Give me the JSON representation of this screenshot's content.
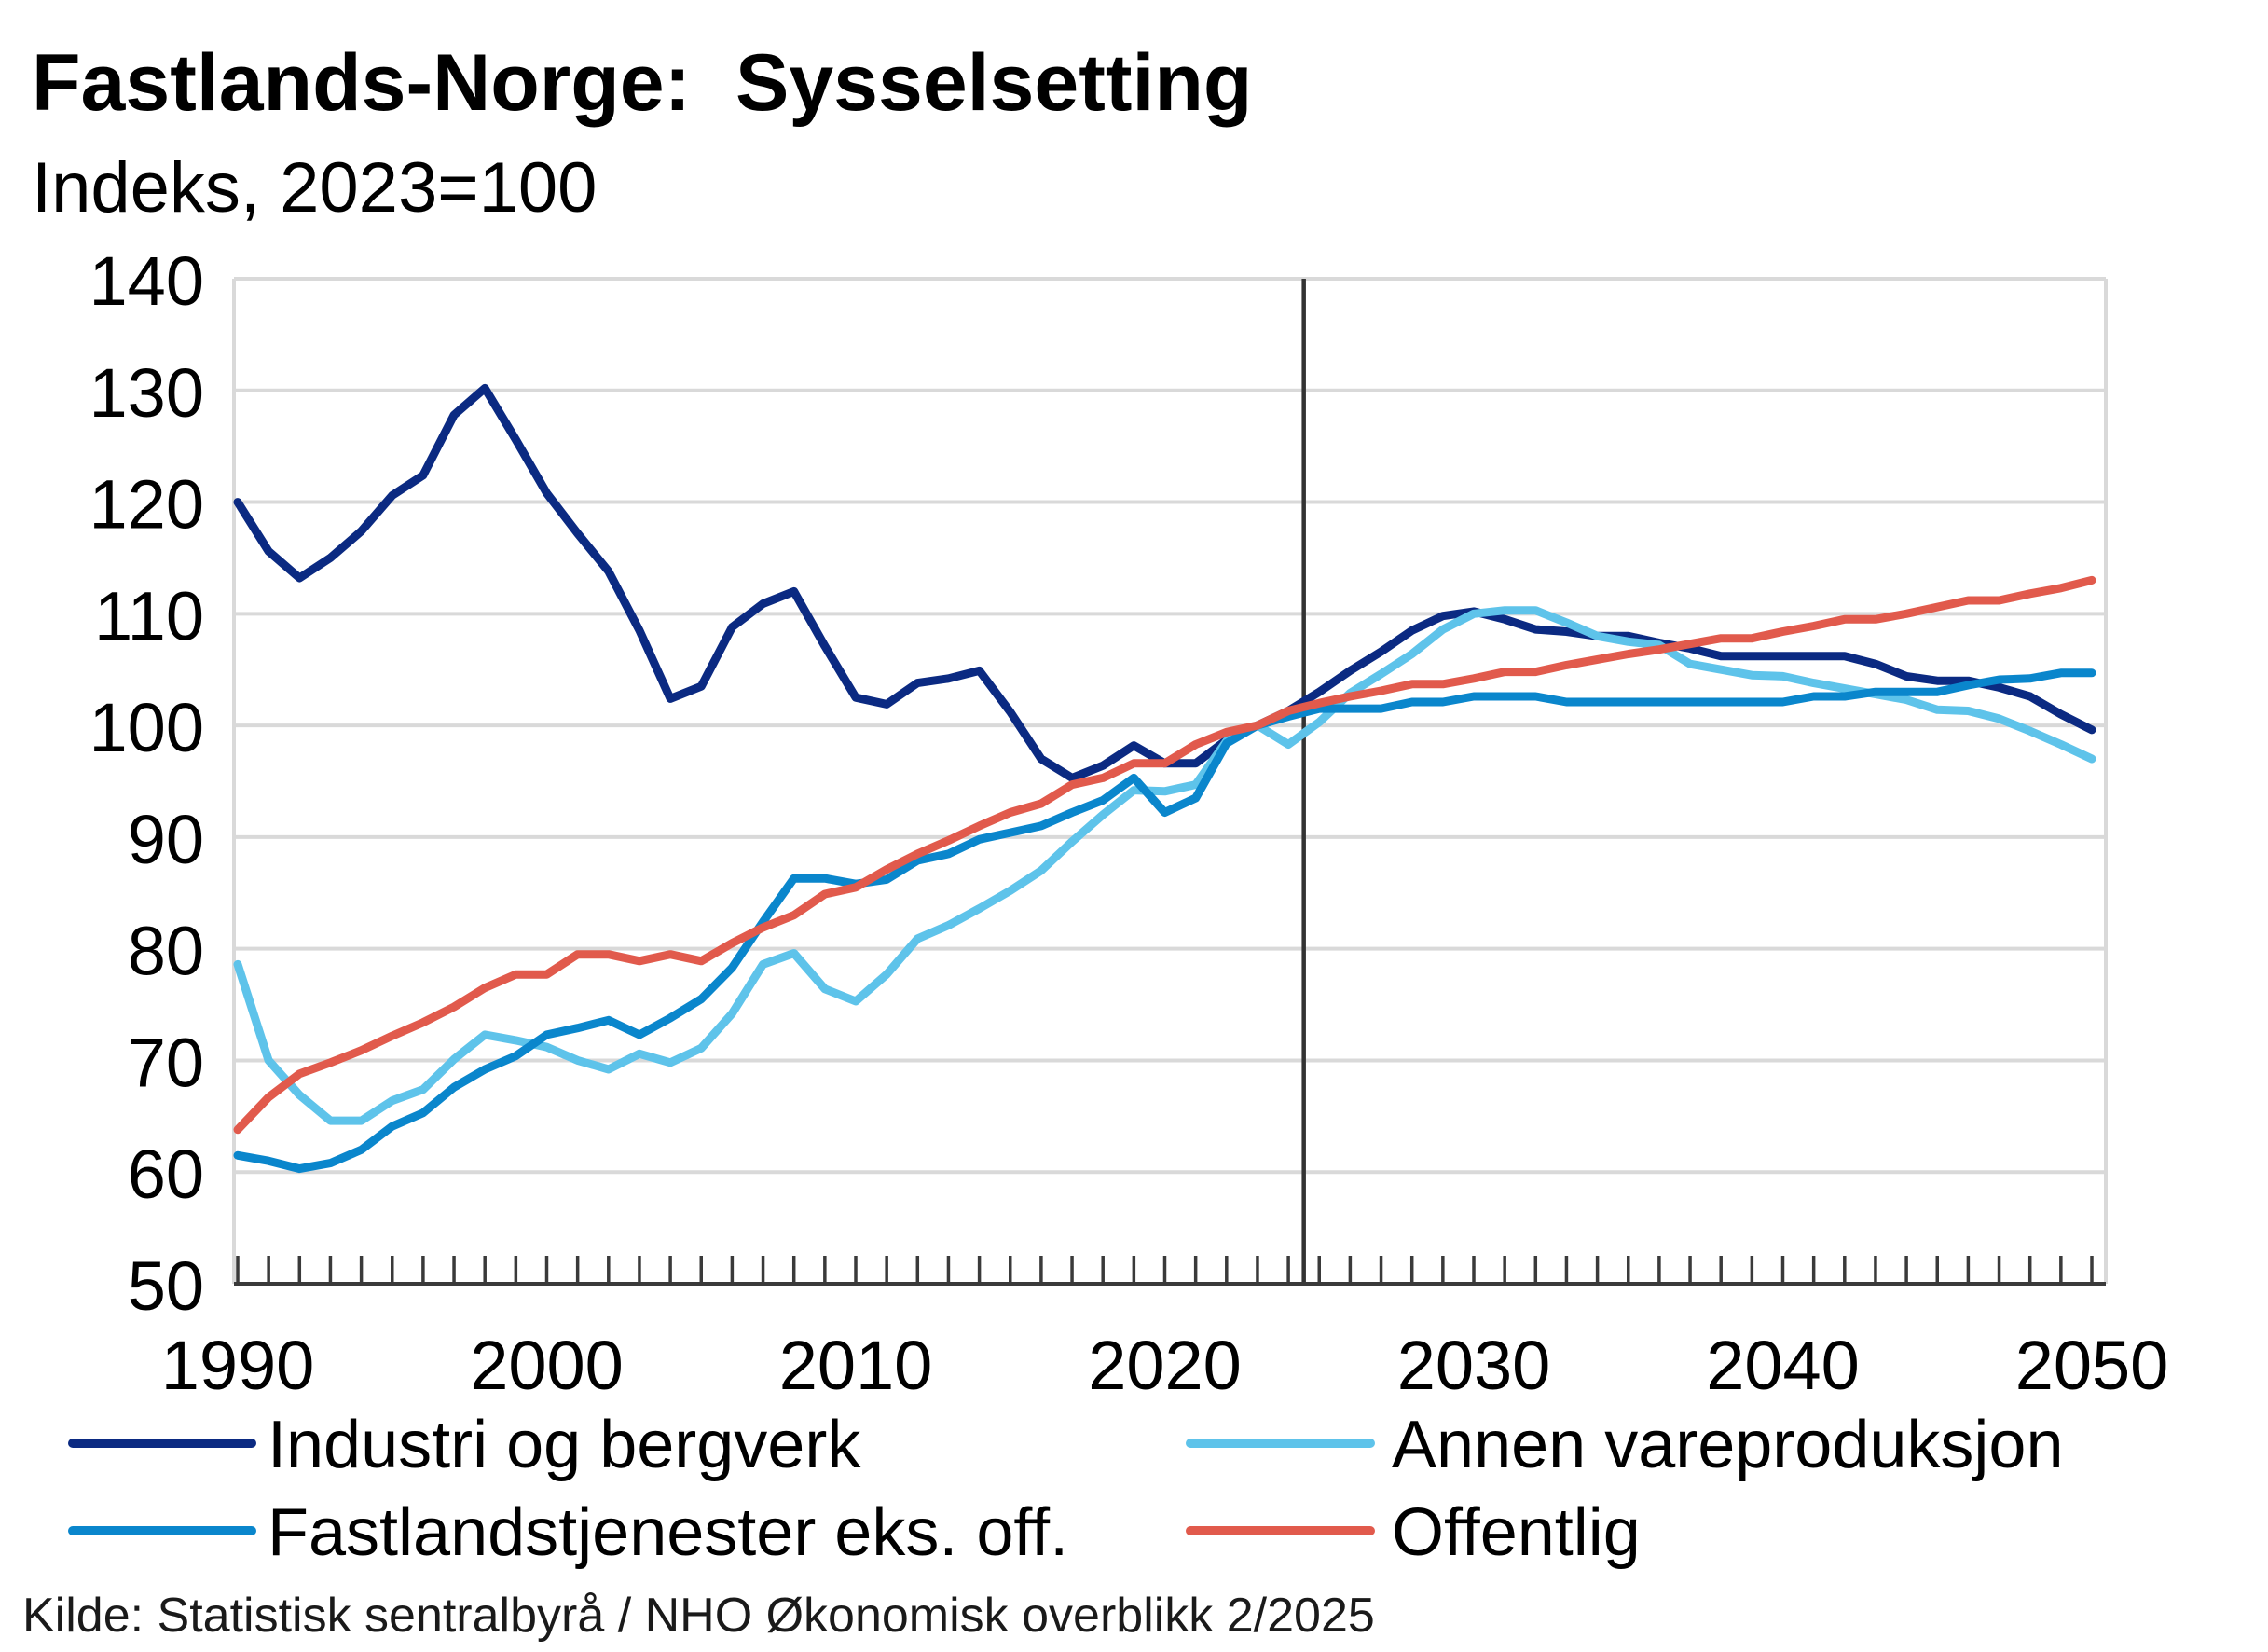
{
  "source": "Kilde: Statistisk sentralbyrå / NHO Økonomisk overblikk 2/2025",
  "chart_data": {
    "type": "line",
    "title": "Fastlands-Norge:  Sysselsetting",
    "subtitle": "Indeks, 2023=100",
    "xlabel": "",
    "ylabel": "",
    "ylim": [
      50,
      140
    ],
    "y_ticks": [
      50,
      60,
      70,
      80,
      90,
      100,
      110,
      120,
      130,
      140
    ],
    "x_ticks": [
      1990,
      2000,
      2010,
      2020,
      2030,
      2040,
      2050
    ],
    "grid": "horizontal",
    "legend_position": "bottom",
    "vertical_line_x": 2024.5,
    "x": [
      1990,
      1991,
      1992,
      1993,
      1994,
      1995,
      1996,
      1997,
      1998,
      1999,
      2000,
      2001,
      2002,
      2003,
      2004,
      2005,
      2006,
      2007,
      2008,
      2009,
      2010,
      2011,
      2012,
      2013,
      2014,
      2015,
      2016,
      2017,
      2018,
      2019,
      2020,
      2021,
      2022,
      2023,
      2024,
      2025,
      2026,
      2027,
      2028,
      2029,
      2030,
      2031,
      2032,
      2033,
      2034,
      2035,
      2036,
      2037,
      2038,
      2039,
      2040,
      2041,
      2042,
      2043,
      2044,
      2045,
      2046,
      2047,
      2048,
      2049,
      2050
    ],
    "series": [
      {
        "name": "Industri og bergverk",
        "color": "#0b2a82",
        "values": [
          120.0,
          115.6,
          113.2,
          115.0,
          117.4,
          120.6,
          122.4,
          127.8,
          130.2,
          125.6,
          120.8,
          117.2,
          113.8,
          108.5,
          102.4,
          103.5,
          108.8,
          110.9,
          112.0,
          107.1,
          102.5,
          101.9,
          103.8,
          104.2,
          104.9,
          101.2,
          97.0,
          95.3,
          96.4,
          98.2,
          96.6,
          96.6,
          98.7,
          100.0,
          101.3,
          103.0,
          104.9,
          106.6,
          108.5,
          109.8,
          110.2,
          109.5,
          108.6,
          108.4,
          108.0,
          108.0,
          107.4,
          106.9,
          106.2,
          106.2,
          106.2,
          106.2,
          106.2,
          105.5,
          104.4,
          104.0,
          104.0,
          103.4,
          102.6,
          101.0,
          99.6
        ]
      },
      {
        "name": "Annen vareproduksjon",
        "color": "#5ec3ea",
        "values": [
          78.6,
          70.0,
          66.9,
          64.6,
          64.6,
          66.4,
          67.4,
          70.1,
          72.3,
          71.8,
          71.2,
          70.0,
          69.2,
          70.6,
          69.8,
          71.1,
          74.2,
          78.6,
          79.6,
          76.4,
          75.3,
          77.7,
          80.9,
          82.1,
          83.6,
          85.2,
          87.0,
          89.6,
          92.0,
          94.2,
          94.1,
          94.7,
          98.6,
          100.0,
          98.3,
          100.3,
          102.9,
          104.6,
          106.4,
          108.6,
          110.0,
          110.3,
          110.3,
          109.2,
          108.0,
          107.5,
          107.2,
          105.5,
          105.0,
          104.5,
          104.4,
          103.8,
          103.3,
          102.8,
          102.3,
          101.4,
          101.3,
          100.6,
          99.5,
          98.3,
          97.0
        ]
      },
      {
        "name": "Fastlandstjenester eks. off.",
        "color": "#0a86cc",
        "values": [
          61.5,
          61.0,
          60.3,
          60.8,
          62.0,
          64.1,
          65.3,
          67.6,
          69.2,
          70.4,
          72.3,
          72.9,
          73.6,
          72.3,
          73.8,
          75.5,
          78.3,
          82.4,
          86.3,
          86.3,
          85.8,
          86.2,
          87.9,
          88.5,
          89.8,
          90.4,
          91.0,
          92.2,
          93.3,
          95.3,
          92.2,
          93.5,
          98.4,
          100.0,
          100.8,
          101.5,
          101.5,
          101.5,
          102.1,
          102.1,
          102.6,
          102.6,
          102.6,
          102.1,
          102.1,
          102.1,
          102.1,
          102.1,
          102.1,
          102.1,
          102.1,
          102.6,
          102.6,
          103.0,
          103.0,
          103.0,
          103.6,
          104.1,
          104.2,
          104.7,
          104.7
        ]
      },
      {
        "name": "Offentlig",
        "color": "#e15a4c",
        "values": [
          63.8,
          66.7,
          68.8,
          69.8,
          70.9,
          72.2,
          73.4,
          74.8,
          76.5,
          77.7,
          77.7,
          79.5,
          79.5,
          78.9,
          79.5,
          78.9,
          80.5,
          81.9,
          83.0,
          84.9,
          85.5,
          87.1,
          88.5,
          89.7,
          91.0,
          92.2,
          93.0,
          94.7,
          95.3,
          96.6,
          96.6,
          98.3,
          99.4,
          100.0,
          101.3,
          102.0,
          102.6,
          103.1,
          103.7,
          103.7,
          104.2,
          104.8,
          104.8,
          105.4,
          105.9,
          106.4,
          106.8,
          107.3,
          107.8,
          107.8,
          108.4,
          108.9,
          109.5,
          109.5,
          110.0,
          110.6,
          111.2,
          111.2,
          111.8,
          112.3,
          113.0
        ]
      }
    ]
  }
}
